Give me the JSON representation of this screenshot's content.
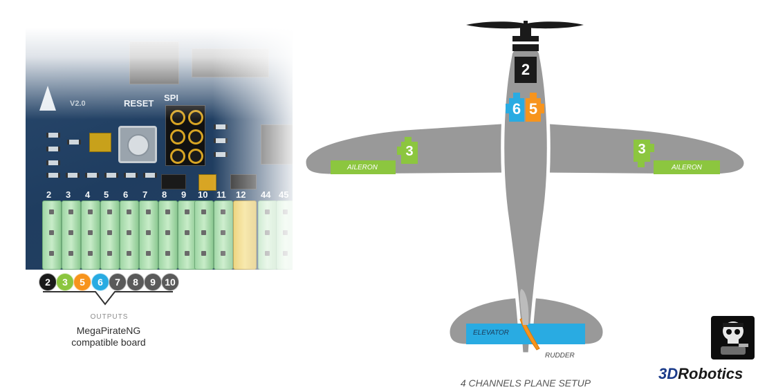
{
  "board": {
    "silk_reset": "RESET",
    "silk_spi": "SPI",
    "silk_version": "V2.0",
    "pin_numbers": [
      "2",
      "3",
      "4",
      "5",
      "6",
      "7",
      "8",
      "9",
      "10",
      "11",
      "12",
      "44",
      "45"
    ],
    "output_dots": [
      {
        "label": "2",
        "color": "#1a1a1a"
      },
      {
        "label": "3",
        "color": "#8cc63f"
      },
      {
        "label": "5",
        "color": "#f7941d"
      },
      {
        "label": "6",
        "color": "#29abe2"
      },
      {
        "label": "7",
        "color": "#5a5a5a"
      },
      {
        "label": "8",
        "color": "#5a5a5a"
      },
      {
        "label": "9",
        "color": "#5a5a5a"
      },
      {
        "label": "10",
        "color": "#5a5a5a"
      }
    ],
    "outputs_label": "OUTPUTS",
    "caption_line1": "MegaPirateNG",
    "caption_line2": "compatible board"
  },
  "plane": {
    "motor_channel": "2",
    "channel_6": "6",
    "channel_5": "5",
    "left_aileron_channel": "3",
    "right_aileron_channel": "3",
    "aileron_label_left": "AILERON",
    "aileron_label_right": "AILERON",
    "elevator_label": "ELEVATOR",
    "rudder_label": "RUDDER",
    "caption": "4 CHANNELS PLANE SETUP"
  },
  "brand": {
    "prefix": "3D",
    "name": "Robotics"
  },
  "colors": {
    "plane_gray": "#999999",
    "aileron_green": "#8cc63f",
    "elevator_blue": "#29abe2",
    "rudder_orange": "#f7941d",
    "channel_orange": "#f7941d",
    "channel_blue": "#29abe2"
  }
}
